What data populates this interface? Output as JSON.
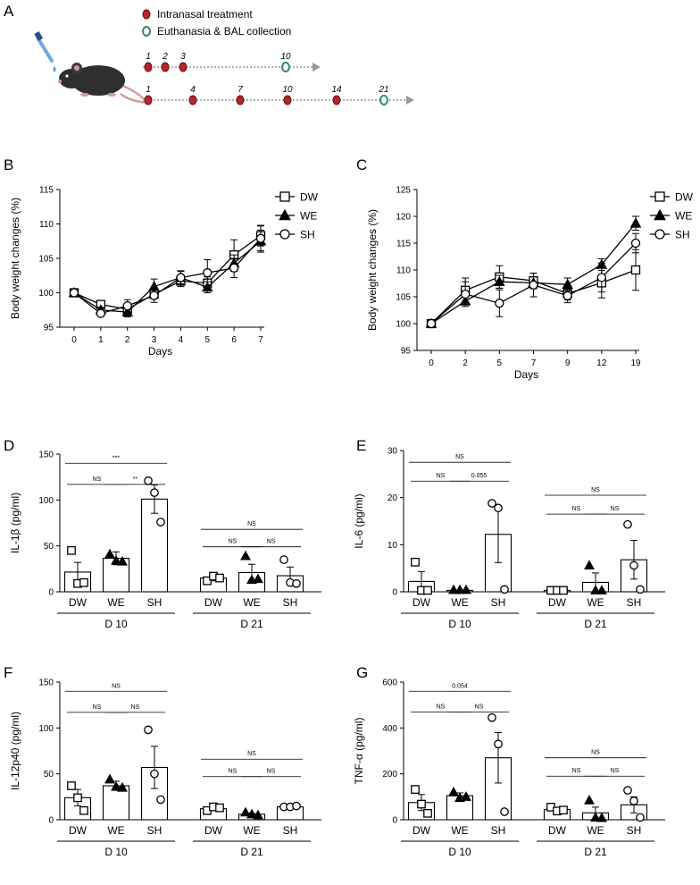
{
  "figure": {
    "panel_letters": [
      "A",
      "B",
      "C",
      "D",
      "E",
      "F",
      "G"
    ]
  },
  "timeline": {
    "legend": [
      {
        "label": "Intranasal treatment",
        "color": "#b8242b",
        "marker": "filled-red-dot"
      },
      {
        "label": "Euthanasia & BAL collection",
        "color": "#2f8c6e",
        "marker": "green-ring-dot"
      }
    ],
    "rows": [
      {
        "days": [
          {
            "label": "1",
            "type": "treatment"
          },
          {
            "label": "2",
            "type": "treatment"
          },
          {
            "label": "3",
            "type": "treatment"
          },
          {
            "label": "10",
            "type": "euthanasia"
          }
        ]
      },
      {
        "days": [
          {
            "label": "1",
            "type": "treatment"
          },
          {
            "label": "4",
            "type": "treatment"
          },
          {
            "label": "7",
            "type": "treatment"
          },
          {
            "label": "10",
            "type": "treatment"
          },
          {
            "label": "14",
            "type": "treatment"
          },
          {
            "label": "21",
            "type": "euthanasia"
          }
        ]
      }
    ],
    "illustration": "mouse-with-pipette-icon"
  },
  "chart_data": [
    {
      "id": "B",
      "type": "line",
      "xlabel": "Days",
      "ylabel": "Body weight changes (%)",
      "categories": [
        "0",
        "1",
        "2",
        "3",
        "4",
        "5",
        "6",
        "7"
      ],
      "ylim": [
        95,
        115
      ],
      "yticks": [
        95,
        100,
        105,
        110,
        115
      ],
      "legend": [
        "DW",
        "WE",
        "SH"
      ],
      "series": [
        {
          "name": "DW",
          "marker": "square",
          "values": [
            100,
            98.3,
            97.6,
            99.8,
            101.7,
            101.4,
            105.5,
            108.3
          ],
          "err": [
            0.3,
            0.5,
            0.6,
            0.6,
            0.8,
            0.9,
            2.2,
            1.5
          ]
        },
        {
          "name": "WE",
          "marker": "triangle",
          "values": [
            100,
            97.5,
            97.2,
            100.9,
            102.2,
            100.8,
            104.3,
            107.5
          ],
          "err": [
            0.3,
            0.4,
            0.7,
            1.1,
            1.0,
            0.8,
            1.2,
            1.6
          ]
        },
        {
          "name": "SH",
          "marker": "circle",
          "values": [
            100,
            97.0,
            98.1,
            99.6,
            102.2,
            102.9,
            103.6,
            107.9
          ],
          "err": [
            0.3,
            0.4,
            0.9,
            1.0,
            0.9,
            1.9,
            1.4,
            1.8
          ]
        }
      ]
    },
    {
      "id": "C",
      "type": "line",
      "xlabel": "Days",
      "ylabel": "Body weight changes (%)",
      "categories": [
        "0",
        "2",
        "5",
        "7",
        "9",
        "12",
        "19"
      ],
      "ylim": [
        95,
        125
      ],
      "yticks": [
        95,
        100,
        105,
        110,
        115,
        120,
        125
      ],
      "legend": [
        "DW",
        "WE",
        "SH"
      ],
      "series": [
        {
          "name": "DW",
          "marker": "square",
          "values": [
            100,
            106.2,
            108.7,
            108.0,
            105.6,
            107.6,
            110.0
          ],
          "err": [
            0.3,
            2.3,
            2.1,
            1.4,
            1.2,
            2.8,
            3.8
          ]
        },
        {
          "name": "WE",
          "marker": "triangle",
          "values": [
            100,
            104.2,
            107.8,
            107.6,
            107.3,
            111.0,
            118.7
          ],
          "err": [
            0.3,
            0.7,
            1.2,
            1.1,
            1.2,
            1.1,
            1.3
          ]
        },
        {
          "name": "SH",
          "marker": "circle",
          "values": [
            100,
            105.5,
            103.8,
            107.2,
            105.2,
            108.6,
            115.0
          ],
          "err": [
            0.3,
            2.3,
            2.5,
            2.2,
            1.3,
            2.7,
            1.8
          ]
        }
      ]
    },
    {
      "id": "D",
      "type": "bar",
      "ylabel": "IL-1β (pg/ml)",
      "ylim": [
        0,
        150
      ],
      "yticks": [
        0,
        50,
        100,
        150
      ],
      "bars": [
        {
          "label": "DW",
          "mean": 21.5,
          "err": 10.5,
          "marker": "square",
          "points": [
            45,
            9,
            10
          ]
        },
        {
          "label": "WE",
          "mean": 36.5,
          "err": 7.0,
          "marker": "triangle",
          "points": [
            41,
            34,
            33
          ]
        },
        {
          "label": "SH",
          "mean": 101,
          "err": 15.5,
          "marker": "circle",
          "points": [
            121,
            108,
            76
          ]
        },
        {
          "label": "DW",
          "mean": 15,
          "err": 3.0,
          "marker": "square",
          "points": [
            12,
            17,
            15
          ]
        },
        {
          "label": "WE",
          "mean": 21,
          "err": 9.0,
          "marker": "triangle",
          "points": [
            39,
            13,
            14
          ]
        },
        {
          "label": "SH",
          "mean": 17.5,
          "err": 9.5,
          "marker": "circle",
          "points": [
            35,
            10,
            9
          ]
        }
      ],
      "groups": [
        "D 10",
        "D 21"
      ],
      "significance": [
        {
          "from": 0,
          "to": 2,
          "label": "***",
          "y": 140
        },
        {
          "from": 0,
          "to": 1,
          "label": "NS",
          "y": 117
        },
        {
          "from": 1,
          "to": 2,
          "label": "**",
          "y": 117
        },
        {
          "from": 3,
          "to": 5,
          "label": "NS",
          "y": 68
        },
        {
          "from": 3,
          "to": 4,
          "label": "NS",
          "y": 49
        },
        {
          "from": 4,
          "to": 5,
          "label": "NS",
          "y": 49
        }
      ]
    },
    {
      "id": "E",
      "type": "bar",
      "ylabel": "IL-6 (pg/ml)",
      "ylim": [
        0,
        30
      ],
      "yticks": [
        0,
        10,
        20,
        30
      ],
      "bars": [
        {
          "label": "DW",
          "mean": 2.2,
          "err": 2.1,
          "marker": "square",
          "points": [
            6.3,
            0.3,
            0.3
          ]
        },
        {
          "label": "WE",
          "mean": 0.3,
          "err": 0,
          "marker": "triangle",
          "points": [
            0.4,
            0.4,
            0.4
          ]
        },
        {
          "label": "SH",
          "mean": 12.2,
          "err": 6.0,
          "marker": "circle",
          "points": [
            18.8,
            17.8,
            0.5
          ]
        },
        {
          "label": "DW",
          "mean": 0.3,
          "err": 0,
          "marker": "square",
          "points": [
            0.3,
            0.3,
            0.3
          ]
        },
        {
          "label": "WE",
          "mean": 2.0,
          "err": 2.0,
          "marker": "triangle",
          "points": [
            5.6,
            0.3,
            0.3
          ]
        },
        {
          "label": "SH",
          "mean": 6.8,
          "err": 4.1,
          "marker": "circle",
          "points": [
            14.3,
            5.6,
            0.5
          ]
        }
      ],
      "groups": [
        "D 10",
        "D 21"
      ],
      "significance": [
        {
          "from": 0,
          "to": 2,
          "label": "NS",
          "y": 27.5
        },
        {
          "from": 0,
          "to": 1,
          "label": "NS",
          "y": 23.5
        },
        {
          "from": 1,
          "to": 2,
          "label": "0.055",
          "y": 23.5
        },
        {
          "from": 3,
          "to": 5,
          "label": "NS",
          "y": 20.5
        },
        {
          "from": 3,
          "to": 4,
          "label": "NS",
          "y": 16.5
        },
        {
          "from": 4,
          "to": 5,
          "label": "NS",
          "y": 16.5
        }
      ]
    },
    {
      "id": "F",
      "type": "bar",
      "ylabel": "IL-12p40 (pg/ml)",
      "ylim": [
        0,
        150
      ],
      "yticks": [
        0,
        50,
        100,
        150
      ],
      "bars": [
        {
          "label": "DW",
          "mean": 24,
          "err": 9.0,
          "marker": "square",
          "points": [
            37,
            24,
            10
          ]
        },
        {
          "label": "WE",
          "mean": 37,
          "err": 5.0,
          "marker": "triangle",
          "points": [
            44,
            36,
            35
          ]
        },
        {
          "label": "SH",
          "mean": 57,
          "err": 23,
          "marker": "circle",
          "points": [
            98,
            50,
            22
          ]
        },
        {
          "label": "DW",
          "mean": 12,
          "err": 2.0,
          "marker": "square",
          "points": [
            10,
            14,
            13
          ]
        },
        {
          "label": "WE",
          "mean": 6,
          "err": 1.0,
          "marker": "triangle",
          "points": [
            8,
            6,
            5
          ]
        },
        {
          "label": "SH",
          "mean": 14,
          "err": 1.0,
          "marker": "circle",
          "points": [
            14,
            14,
            15
          ]
        }
      ],
      "groups": [
        "D 10",
        "D 21"
      ],
      "significance": [
        {
          "from": 0,
          "to": 2,
          "label": "NS",
          "y": 140
        },
        {
          "from": 0,
          "to": 1,
          "label": "NS",
          "y": 117
        },
        {
          "from": 1,
          "to": 2,
          "label": "NS",
          "y": 117
        },
        {
          "from": 3,
          "to": 5,
          "label": "NS",
          "y": 66
        },
        {
          "from": 3,
          "to": 4,
          "label": "NS",
          "y": 47
        },
        {
          "from": 4,
          "to": 5,
          "label": "NS",
          "y": 47
        }
      ]
    },
    {
      "id": "G",
      "type": "bar",
      "ylabel": "TNF-α (pg/ml)",
      "ylim": [
        0,
        600
      ],
      "yticks": [
        0,
        200,
        400,
        600
      ],
      "bars": [
        {
          "label": "DW",
          "mean": 75,
          "err": 35,
          "marker": "square",
          "points": [
            132,
            68,
            28
          ]
        },
        {
          "label": "WE",
          "mean": 105,
          "err": 12,
          "marker": "triangle",
          "points": [
            120,
            95,
            100
          ]
        },
        {
          "label": "SH",
          "mean": 270,
          "err": 110,
          "marker": "circle",
          "points": [
            445,
            330,
            35
          ]
        },
        {
          "label": "DW",
          "mean": 45,
          "err": 8,
          "marker": "square",
          "points": [
            55,
            38,
            42
          ]
        },
        {
          "label": "WE",
          "mean": 30,
          "err": 25,
          "marker": "triangle",
          "points": [
            85,
            10,
            8
          ]
        },
        {
          "label": "SH",
          "mean": 65,
          "err": 35,
          "marker": "circle",
          "points": [
            128,
            82,
            10
          ]
        }
      ],
      "groups": [
        "D 10",
        "D 21"
      ],
      "significance": [
        {
          "from": 0,
          "to": 2,
          "label": "0.054",
          "y": 560
        },
        {
          "from": 0,
          "to": 1,
          "label": "NS",
          "y": 470
        },
        {
          "from": 1,
          "to": 2,
          "label": "NS",
          "y": 470
        },
        {
          "from": 3,
          "to": 5,
          "label": "NS",
          "y": 270
        },
        {
          "from": 3,
          "to": 4,
          "label": "NS",
          "y": 190
        },
        {
          "from": 4,
          "to": 5,
          "label": "NS",
          "y": 190
        }
      ]
    }
  ]
}
